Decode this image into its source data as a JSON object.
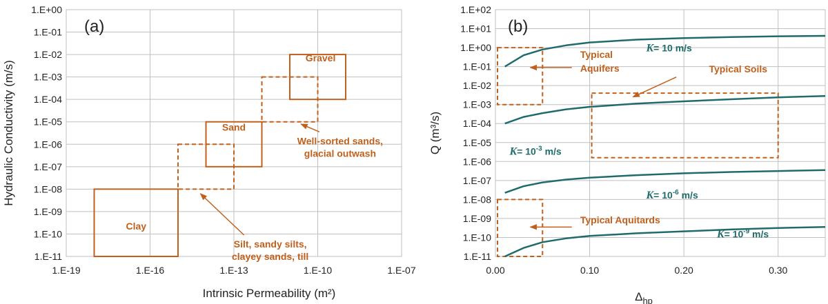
{
  "colors": {
    "accent": "#c0601c",
    "curve": "#1f6b6b",
    "axis": "#bfbfbf",
    "text": "#222222"
  },
  "chart_data": [
    {
      "panel_label": "(a)",
      "type": "box",
      "xlabel": "Intrinsic Permeability (m²)",
      "ylabel": "Hydraulic Conductivity (m/s)",
      "xscale": "log",
      "yscale": "log",
      "xlim_exp": [
        -19,
        -7
      ],
      "ylim_exp": [
        -11,
        0
      ],
      "xticks": [
        "1.E-19",
        "1.E-16",
        "1.E-13",
        "1.E-10",
        "1.E-07"
      ],
      "yticks": [
        "1.E-11",
        "1.E-10",
        "1.E-09",
        "1.E-08",
        "1.E-07",
        "1.E-06",
        "1.E-05",
        "1.E-04",
        "1.E-03",
        "1.E-02",
        "1.E-01",
        "1.E+00"
      ],
      "boxes": [
        {
          "name": "Clay",
          "style": "solid",
          "x_exp": [
            -18,
            -15
          ],
          "y_exp": [
            -11,
            -8
          ],
          "label_at_exp": [
            -16.5,
            -9.8
          ]
        },
        {
          "name": "",
          "style": "dashed",
          "x_exp": [
            -15,
            -13
          ],
          "y_exp": [
            -8,
            -6
          ],
          "label_at_exp": null
        },
        {
          "name": "Sand",
          "style": "solid",
          "x_exp": [
            -14,
            -12
          ],
          "y_exp": [
            -7,
            -5
          ],
          "label_at_exp": [
            -13,
            -5.4
          ]
        },
        {
          "name": "",
          "style": "dashed",
          "x_exp": [
            -12,
            -10
          ],
          "y_exp": [
            -5,
            -3
          ],
          "label_at_exp": null
        },
        {
          "name": "Gravel",
          "style": "solid",
          "x_exp": [
            -11,
            -9
          ],
          "y_exp": [
            -4,
            -2
          ],
          "label_at_exp": [
            -9.9,
            -2.3
          ]
        }
      ],
      "annotations": [
        {
          "lines": [
            "Well-sorted sands,",
            "glacial outwash"
          ],
          "text_at_exp": [
            -9.2,
            -6.0
          ],
          "arrow_tip_exp": [
            -10.6,
            -5.1
          ]
        },
        {
          "lines": [
            "Silt, sandy silts,",
            "clayey sands, till"
          ],
          "text_at_exp": [
            -11.7,
            -10.6
          ],
          "arrow_tip_exp": [
            -14.2,
            -8.2
          ]
        }
      ]
    },
    {
      "panel_label": "(b)",
      "type": "line",
      "xlabel": "Δhp",
      "ylabel": "Q (m³/s)",
      "yscale": "log",
      "xlim": [
        0,
        0.35
      ],
      "ylim_exp": [
        -11,
        2
      ],
      "xticks": [
        "0.00",
        "0.10",
        "0.20",
        "0.30"
      ],
      "yticks": [
        "1.E-11",
        "1.E-10",
        "1.E-09",
        "1.E-08",
        "1.E-07",
        "1.E-06",
        "1.E-05",
        "1.E-04",
        "1.E-03",
        "1.E-02",
        "1.E-01",
        "1.E+00",
        "1.E+01",
        "1.E+02"
      ],
      "series": [
        {
          "name": "K= 10 m/s",
          "label_main": "K",
          "label_rest": "= 10 m/s",
          "label_sup": "",
          "label_tail": "",
          "label_at": [
            0.16,
            -0.2
          ],
          "x": [
            0.01,
            0.03,
            0.05,
            0.075,
            0.1,
            0.15,
            0.2,
            0.25,
            0.3,
            0.35
          ],
          "log10_y": [
            -1.0,
            -0.4,
            -0.1,
            0.12,
            0.27,
            0.42,
            0.5,
            0.56,
            0.6,
            0.62
          ]
        },
        {
          "name": "K= 10-3 m/s",
          "label_main": "K",
          "label_rest": "= 10",
          "label_sup": "-3",
          "label_tail": " m/s",
          "label_at": [
            0.015,
            -5.65
          ],
          "x": [
            0.01,
            0.03,
            0.05,
            0.075,
            0.1,
            0.15,
            0.2,
            0.25,
            0.3,
            0.35
          ],
          "log10_y": [
            -4.0,
            -3.65,
            -3.45,
            -3.25,
            -3.12,
            -2.95,
            -2.83,
            -2.72,
            -2.62,
            -2.55
          ]
        },
        {
          "name": "K= 10-6 m/s",
          "label_main": "K",
          "label_rest": "= 10",
          "label_sup": "-6",
          "label_tail": " m/s",
          "label_at": [
            0.16,
            -7.95
          ],
          "x": [
            0.01,
            0.03,
            0.05,
            0.075,
            0.1,
            0.15,
            0.2,
            0.25,
            0.3,
            0.35
          ],
          "log10_y": [
            -7.65,
            -7.3,
            -7.1,
            -6.95,
            -6.85,
            -6.72,
            -6.62,
            -6.55,
            -6.5,
            -6.45
          ]
        },
        {
          "name": "K= 10-9 m/s",
          "label_main": "K",
          "label_rest": "= 10",
          "label_sup": "-9",
          "label_tail": " m/s",
          "label_at": [
            0.235,
            -10.0
          ],
          "x": [
            0.01,
            0.03,
            0.05,
            0.075,
            0.1,
            0.15,
            0.2,
            0.25,
            0.3,
            0.35
          ],
          "log10_y": [
            -11.0,
            -10.55,
            -10.25,
            -10.05,
            -9.92,
            -9.78,
            -9.68,
            -9.58,
            -9.5,
            -9.45
          ]
        }
      ],
      "boxes": [
        {
          "name": "Typical Aquifers",
          "x": [
            0.0,
            0.05
          ],
          "y_exp": [
            -3,
            0
          ]
        },
        {
          "name": "Typical Soils",
          "x": [
            0.1,
            0.3
          ],
          "y_exp": [
            -5.8,
            -2.4
          ]
        },
        {
          "name": "Typical Aquitards",
          "x": [
            0.0,
            0.05
          ],
          "y_exp": [
            -11,
            -8
          ]
        }
      ],
      "annotations": [
        {
          "lines": [
            "Typical",
            "Aquifers"
          ],
          "text_at": [
            0.068,
            -0.55
          ],
          "arrow_from": [
            0.065,
            -1.05
          ],
          "arrow_tip": [
            0.037,
            -1.05
          ]
        },
        {
          "lines": [
            "Typical Soils"
          ],
          "text_at": [
            0.19,
            -1.3
          ],
          "arrow_from": [
            0.17,
            -1.55
          ],
          "arrow_tip": [
            0.146,
            -2.6
          ]
        },
        {
          "lines": [
            "Typical Aquitards"
          ],
          "text_at": [
            0.068,
            -9.25
          ],
          "arrow_from": [
            0.065,
            -9.45
          ],
          "arrow_tip": [
            0.037,
            -9.45
          ]
        }
      ]
    }
  ]
}
